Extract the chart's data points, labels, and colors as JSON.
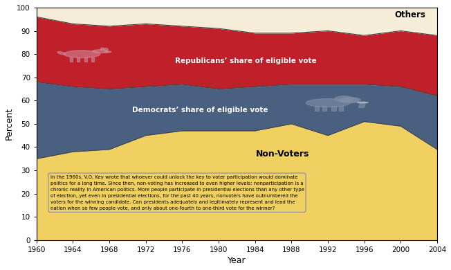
{
  "years": [
    1960,
    1964,
    1968,
    1972,
    1976,
    1980,
    1984,
    1988,
    1992,
    1996,
    2000,
    2004
  ],
  "non_voters": [
    35,
    38,
    39,
    45,
    47,
    47,
    47,
    50,
    45,
    51,
    49,
    39
  ],
  "democrats": [
    33,
    28,
    26,
    21,
    20,
    18,
    19,
    17,
    22,
    16,
    17,
    23
  ],
  "republicans": [
    28,
    27,
    27,
    27,
    25,
    26,
    23,
    22,
    23,
    21,
    24,
    26
  ],
  "others": [
    4,
    7,
    8,
    7,
    8,
    9,
    11,
    11,
    10,
    12,
    10,
    12
  ],
  "colors": {
    "non_voters": "#F0D060",
    "democrats": "#4A6080",
    "republicans": "#C0202A",
    "others": "#F5EDD8"
  },
  "annotation_text": "In the 1960s, V.O. Key wrote that whoever could unlock the key to voter participation would dominate\npolitics for a long time. Since then, non-voting has increased to even higher levels: nonparticipation is a\nchronic reality in American politics. More people participate in presidential elections than any other type\nof election, yet even in presidential elections, for the past 40 years, nonvoters have outnumbered the\nvoters for the winning candidate. Can presidents adequately and legitimately represent and lead the\nnation when so few people vote, and only about one-fourth to one-third vote for the winner?",
  "label_nonvoters": "Non-Voters",
  "label_others": "Others",
  "xlabel": "Year",
  "ylabel": "Percent",
  "ylim": [
    0,
    100
  ],
  "xlim": [
    1960,
    2004
  ],
  "title": ""
}
